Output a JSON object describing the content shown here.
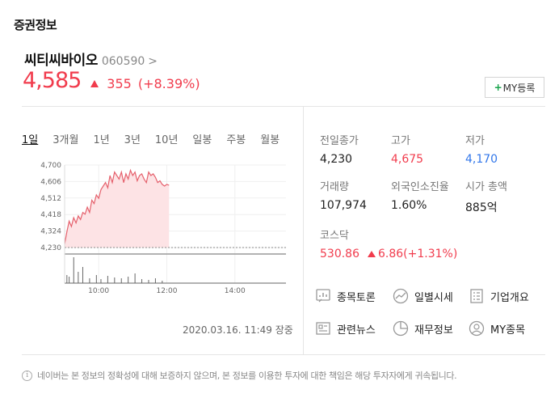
{
  "section_title": "증권정보",
  "stock": {
    "name": "씨티씨바이오",
    "code": "060590",
    "chevron": ">",
    "price": "4,585",
    "change": "355",
    "change_pct": "(+8.39%)",
    "direction": "up"
  },
  "my_button": {
    "plus": "+",
    "label": "MY등록"
  },
  "periods": [
    "1일",
    "3개월",
    "1년",
    "3년",
    "10년",
    "일봉",
    "주봉",
    "월봉"
  ],
  "active_period": "1일",
  "chart_timestamp": "2020.03.16. 11:49 장중",
  "stats": {
    "prev_close": {
      "label": "전일종가",
      "value": "4,230"
    },
    "high": {
      "label": "고가",
      "value": "4,675"
    },
    "low": {
      "label": "저가",
      "value": "4,170"
    },
    "volume": {
      "label": "거래량",
      "value": "107,974"
    },
    "foreign": {
      "label": "외국인소진율",
      "value": "1.60%"
    },
    "market_cap": {
      "label": "시가 총액",
      "value": "885억"
    }
  },
  "index": {
    "label": "코스닥",
    "value": "530.86",
    "change": "6.86",
    "change_pct": "(+1.31%)"
  },
  "links": {
    "discussion": "종목토론",
    "daily": "일별시세",
    "company": "기업개요",
    "news": "관련뉴스",
    "financials": "재무정보",
    "my_stocks": "MY종목"
  },
  "notice": "네이버는 본 정보의 정확성에 대해 보증하지 않으며, 본 정보를 이용한 투자에 대한 책임은 해당 투자자에게 귀속됩니다.",
  "colors": {
    "up": "#f13c4d",
    "down": "#3277ea",
    "accent_green": "#16a34a"
  },
  "chart_data": {
    "type": "area",
    "title": "",
    "xlabel": "",
    "ylabel": "",
    "y_ticks": [
      "4,700",
      "4,606",
      "4,512",
      "4,418",
      "4,324",
      "4,230"
    ],
    "x_ticks": [
      "10:00",
      "12:00",
      "14:00"
    ],
    "ylim": [
      4230,
      4700
    ],
    "baseline": 4230,
    "x_minutes_range": [
      540,
      930
    ],
    "series": [
      {
        "x": [
          540,
          544,
          548,
          552,
          556,
          560,
          564,
          568,
          572,
          576,
          580,
          584,
          588,
          592,
          596,
          600,
          604,
          608,
          612,
          616,
          620,
          624,
          628,
          632,
          636,
          640,
          644,
          648,
          652,
          656,
          660,
          664,
          668,
          672,
          676,
          680,
          684,
          688,
          692,
          696,
          700,
          704,
          708,
          712,
          716,
          720,
          724
        ],
        "values": [
          4250,
          4320,
          4380,
          4350,
          4400,
          4370,
          4410,
          4390,
          4430,
          4420,
          4460,
          4430,
          4500,
          4480,
          4530,
          4510,
          4560,
          4580,
          4600,
          4570,
          4640,
          4600,
          4660,
          4640,
          4620,
          4660,
          4600,
          4650,
          4620,
          4670,
          4640,
          4660,
          4610,
          4640,
          4650,
          4620,
          4600,
          4660,
          4640,
          4650,
          4630,
          4600,
          4610,
          4590,
          4580,
          4590,
          4585
        ]
      }
    ],
    "volume": {
      "x": [
        544,
        548,
        556,
        564,
        572,
        584,
        596,
        604,
        616,
        628,
        640,
        652,
        664,
        676,
        688,
        700,
        712
      ],
      "values": [
        10,
        8,
        32,
        14,
        20,
        6,
        10,
        5,
        9,
        7,
        6,
        8,
        12,
        5,
        4,
        6,
        3
      ]
    }
  }
}
